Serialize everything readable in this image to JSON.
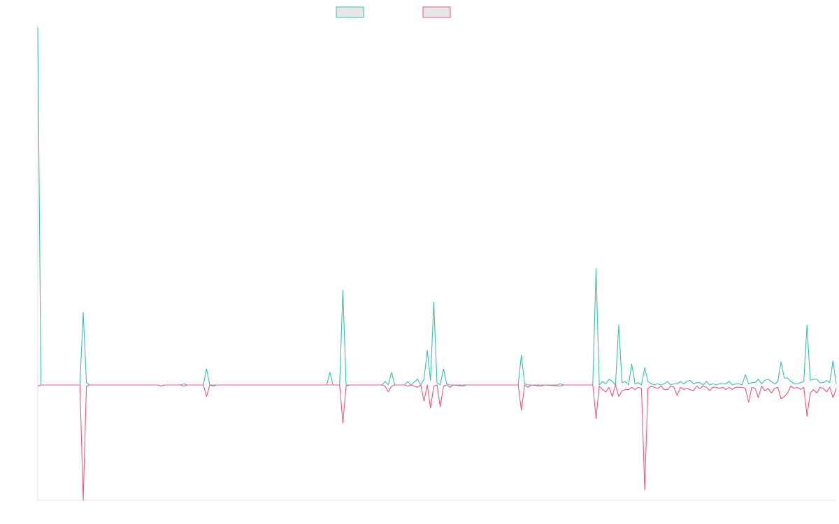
{
  "chart_data": {
    "type": "line",
    "title": "",
    "xlabel": "",
    "ylabel": "",
    "grid": false,
    "legend": "top-center",
    "ylim": [
      -1,
      3.1
    ],
    "xlim": [
      0,
      246
    ],
    "series": [
      {
        "color": "#3cbfb3",
        "swatch_fill": "#e6e6e6",
        "points": [
          [
            0,
            3.1
          ],
          [
            1,
            0
          ],
          [
            13,
            0
          ],
          [
            14,
            0.63
          ],
          [
            15,
            0.02
          ],
          [
            16,
            0
          ],
          [
            37,
            0
          ],
          [
            38,
            -0.01
          ],
          [
            39,
            0
          ],
          [
            44,
            0
          ],
          [
            45,
            0.01
          ],
          [
            46,
            0
          ],
          [
            51,
            0
          ],
          [
            52,
            0.14
          ],
          [
            53,
            0
          ],
          [
            89,
            0
          ],
          [
            90,
            0.11
          ],
          [
            91,
            0
          ],
          [
            93,
            0
          ],
          [
            94,
            0.82
          ],
          [
            95,
            0
          ],
          [
            106,
            0
          ],
          [
            107,
            0.03
          ],
          [
            108,
            0
          ],
          [
            109,
            0.11
          ],
          [
            110,
            0
          ],
          [
            113,
            0
          ],
          [
            114,
            0.03
          ],
          [
            115,
            0
          ],
          [
            117,
            0.05
          ],
          [
            118,
            0
          ],
          [
            119,
            0.05
          ],
          [
            120,
            0.3
          ],
          [
            121,
            0.04
          ],
          [
            122,
            0.72
          ],
          [
            123,
            0.02
          ],
          [
            124,
            0
          ],
          [
            125,
            0.14
          ],
          [
            126,
            0.01
          ],
          [
            127,
            0
          ],
          [
            148,
            0
          ],
          [
            149,
            0.26
          ],
          [
            150,
            0.01
          ],
          [
            151,
            0
          ],
          [
            160,
            0
          ],
          [
            161,
            0.01
          ],
          [
            162,
            0
          ],
          [
            171,
            0
          ],
          [
            172,
            1.01
          ],
          [
            173,
            0
          ],
          [
            174,
            0.03
          ],
          [
            175,
            0.01
          ],
          [
            176,
            0.05
          ],
          [
            177,
            0.03
          ],
          [
            178,
            0
          ],
          [
            179,
            0.52
          ],
          [
            180,
            0.02
          ],
          [
            181,
            0.03
          ],
          [
            182,
            0
          ],
          [
            183,
            0.18
          ],
          [
            184,
            0.01
          ],
          [
            185,
            0.02
          ],
          [
            186,
            0
          ],
          [
            187,
            0.15
          ],
          [
            188,
            0.03
          ],
          [
            189,
            0.01
          ],
          [
            190,
            0
          ],
          [
            191,
            0.01
          ],
          [
            192,
            0
          ],
          [
            193,
            0.01
          ],
          [
            194,
            0.03
          ],
          [
            195,
            0
          ],
          [
            196,
            0.01
          ],
          [
            197,
            0.01
          ],
          [
            198,
            0.03
          ],
          [
            199,
            0.01
          ],
          [
            200,
            0.03
          ],
          [
            201,
            0.04
          ],
          [
            202,
            0.01
          ],
          [
            203,
            0.02
          ],
          [
            204,
            0.02
          ],
          [
            205,
            0
          ],
          [
            206,
            0.03
          ],
          [
            207,
            0
          ],
          [
            208,
            0.01
          ],
          [
            209,
            0
          ],
          [
            210,
            0.01
          ],
          [
            211,
            0.01
          ],
          [
            212,
            0.01
          ],
          [
            213,
            0.03
          ],
          [
            214,
            0
          ],
          [
            215,
            0.01
          ],
          [
            216,
            0.01
          ],
          [
            217,
            0
          ],
          [
            218,
            0.09
          ],
          [
            219,
            0.01
          ],
          [
            220,
            0.02
          ],
          [
            221,
            0.02
          ],
          [
            222,
            0.05
          ],
          [
            223,
            0.01
          ],
          [
            224,
            0.04
          ],
          [
            225,
            0.05
          ],
          [
            226,
            0.03
          ],
          [
            227,
            0.01
          ],
          [
            228,
            0.03
          ],
          [
            229,
            0.2
          ],
          [
            230,
            0.06
          ],
          [
            231,
            0.06
          ],
          [
            232,
            0.03
          ],
          [
            233,
            0.01
          ],
          [
            234,
            0.01
          ],
          [
            235,
            0.02
          ],
          [
            236,
            0.03
          ],
          [
            237,
            0.52
          ],
          [
            238,
            0.04
          ],
          [
            239,
            0.05
          ],
          [
            240,
            0.05
          ],
          [
            241,
            0.02
          ],
          [
            242,
            0.02
          ],
          [
            243,
            0.04
          ],
          [
            244,
            0.02
          ],
          [
            245,
            0.21
          ],
          [
            246,
            0.01
          ]
        ]
      },
      {
        "color": "#f0577e",
        "swatch_fill": "#e6e6e6",
        "points": [
          [
            0,
            -0.01
          ],
          [
            1,
            0
          ],
          [
            13,
            0
          ],
          [
            14,
            -1
          ],
          [
            15,
            -0.01
          ],
          [
            16,
            0
          ],
          [
            37,
            0
          ],
          [
            38,
            -0.01
          ],
          [
            39,
            0
          ],
          [
            44,
            0
          ],
          [
            45,
            -0.01
          ],
          [
            46,
            0
          ],
          [
            51,
            0
          ],
          [
            52,
            -0.1
          ],
          [
            53,
            0
          ],
          [
            54,
            -0.01
          ],
          [
            55,
            0
          ],
          [
            93,
            0
          ],
          [
            94,
            -0.33
          ],
          [
            95,
            -0.01
          ],
          [
            96,
            0
          ],
          [
            106,
            0
          ],
          [
            107,
            -0.01
          ],
          [
            108,
            -0.06
          ],
          [
            109,
            -0.01
          ],
          [
            110,
            0
          ],
          [
            113,
            0
          ],
          [
            114,
            -0.01
          ],
          [
            115,
            0
          ],
          [
            117,
            -0.02
          ],
          [
            118,
            0
          ],
          [
            119,
            -0.14
          ],
          [
            120,
            0
          ],
          [
            121,
            -0.2
          ],
          [
            122,
            -0.01
          ],
          [
            123,
            0
          ],
          [
            124,
            -0.19
          ],
          [
            125,
            -0.01
          ],
          [
            126,
            0
          ],
          [
            127,
            -0.02
          ],
          [
            128,
            0
          ],
          [
            131,
            -0.01
          ],
          [
            132,
            0
          ],
          [
            148,
            0
          ],
          [
            149,
            -0.22
          ],
          [
            150,
            0
          ],
          [
            151,
            -0.02
          ],
          [
            152,
            0
          ],
          [
            155,
            -0.01
          ],
          [
            156,
            0
          ],
          [
            161,
            -0.01
          ],
          [
            162,
            0
          ],
          [
            171,
            0
          ],
          [
            172,
            -0.29
          ],
          [
            173,
            -0.01
          ],
          [
            174,
            -0.04
          ],
          [
            175,
            -0.06
          ],
          [
            176,
            -0.02
          ],
          [
            177,
            -0.1
          ],
          [
            178,
            0
          ],
          [
            179,
            -0.1
          ],
          [
            180,
            -0.05
          ],
          [
            181,
            -0.04
          ],
          [
            182,
            -0.04
          ],
          [
            183,
            -0.02
          ],
          [
            184,
            -0.04
          ],
          [
            185,
            -0.02
          ],
          [
            186,
            -0.03
          ],
          [
            187,
            -0.91
          ],
          [
            188,
            -0.03
          ],
          [
            189,
            -0.01
          ],
          [
            190,
            -0.02
          ],
          [
            191,
            -0.03
          ],
          [
            192,
            -0.01
          ],
          [
            193,
            -0.04
          ],
          [
            194,
            -0.04
          ],
          [
            195,
            -0.01
          ],
          [
            196,
            -0.02
          ],
          [
            197,
            -0.09
          ],
          [
            198,
            -0.02
          ],
          [
            199,
            -0.04
          ],
          [
            200,
            -0.03
          ],
          [
            201,
            -0.04
          ],
          [
            202,
            -0.05
          ],
          [
            203,
            -0.01
          ],
          [
            204,
            -0.03
          ],
          [
            205,
            -0.01
          ],
          [
            206,
            -0.02
          ],
          [
            207,
            -0.05
          ],
          [
            208,
            -0.02
          ],
          [
            209,
            -0.02
          ],
          [
            210,
            -0.03
          ],
          [
            211,
            -0.02
          ],
          [
            212,
            -0.04
          ],
          [
            213,
            -0.02
          ],
          [
            214,
            -0.04
          ],
          [
            215,
            -0.02
          ],
          [
            216,
            -0.02
          ],
          [
            217,
            -0.02
          ],
          [
            218,
            -0.03
          ],
          [
            219,
            -0.15
          ],
          [
            220,
            -0.02
          ],
          [
            221,
            -0.03
          ],
          [
            222,
            -0.11
          ],
          [
            223,
            -0.01
          ],
          [
            224,
            -0.05
          ],
          [
            225,
            -0.03
          ],
          [
            226,
            -0.07
          ],
          [
            227,
            -0.03
          ],
          [
            228,
            -0.02
          ],
          [
            229,
            -0.12
          ],
          [
            230,
            -0.1
          ],
          [
            231,
            -0.07
          ],
          [
            232,
            -0.01
          ],
          [
            233,
            -0.03
          ],
          [
            234,
            -0.02
          ],
          [
            235,
            -0.04
          ],
          [
            236,
            -0.02
          ],
          [
            237,
            -0.27
          ],
          [
            238,
            -0.07
          ],
          [
            239,
            -0.04
          ],
          [
            240,
            -0.07
          ],
          [
            241,
            -0.02
          ],
          [
            242,
            -0.03
          ],
          [
            243,
            -0.06
          ],
          [
            244,
            -0.02
          ],
          [
            245,
            -0.11
          ],
          [
            246,
            -0.03
          ]
        ]
      }
    ]
  }
}
